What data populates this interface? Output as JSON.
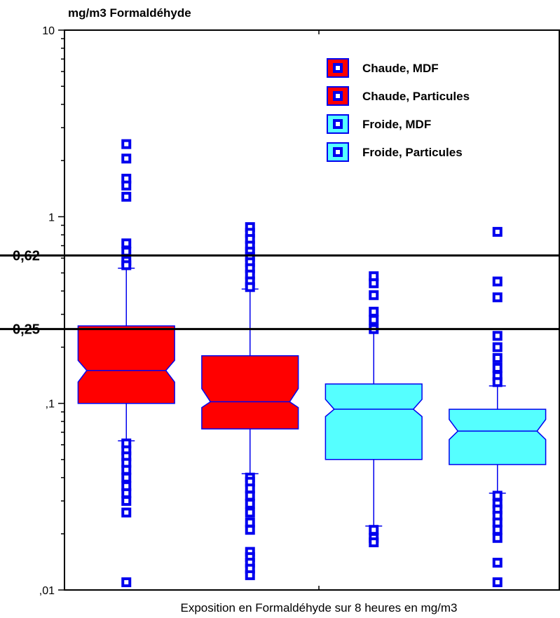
{
  "chart_data": {
    "type": "box",
    "title": "mg/m3 Formaldéhyde",
    "xlabel": "Exposition en Formaldéhyde sur 8 heures en mg/m3",
    "ylabel": "",
    "yscale": "log",
    "ylim": [
      0.01,
      10
    ],
    "yticks": [
      {
        "value": 10,
        "label": "10"
      },
      {
        "value": 1,
        "label": "1"
      },
      {
        "value": 0.1,
        "label": ",1"
      },
      {
        "value": 0.01,
        "label": ",01"
      }
    ],
    "reference_lines": [
      {
        "value": 0.62,
        "label": "0,62"
      },
      {
        "value": 0.25,
        "label": "0,25"
      }
    ],
    "legend_position": "top-right",
    "series": [
      {
        "name": "Chaude, MDF",
        "fill": "#ff0000",
        "q1": 0.1,
        "median": 0.15,
        "q3": 0.26,
        "notch_low": 0.13,
        "notch_high": 0.17,
        "whisker_low": 0.063,
        "whisker_high": 0.53,
        "outliers": [
          2.45,
          2.05,
          1.6,
          1.47,
          1.28,
          0.72,
          0.65,
          0.58,
          0.55,
          0.061,
          0.056,
          0.052,
          0.048,
          0.044,
          0.04,
          0.036,
          0.033,
          0.03,
          0.026,
          0.011
        ]
      },
      {
        "name": "Chaude, Particules",
        "fill": "#ff0000",
        "q1": 0.073,
        "median": 0.102,
        "q3": 0.18,
        "notch_low": 0.095,
        "notch_high": 0.12,
        "whisker_low": 0.042,
        "whisker_high": 0.41,
        "outliers": [
          0.88,
          0.82,
          0.76,
          0.7,
          0.65,
          0.61,
          0.57,
          0.53,
          0.49,
          0.45,
          0.42,
          0.04,
          0.038,
          0.035,
          0.032,
          0.029,
          0.026,
          0.023,
          0.021,
          0.016,
          0.015,
          0.014,
          0.013,
          0.012
        ]
      },
      {
        "name": "Froide, MDF",
        "fill": "#55ffff",
        "q1": 0.05,
        "median": 0.093,
        "q3": 0.127,
        "notch_low": 0.085,
        "notch_high": 0.105,
        "whisker_low": 0.022,
        "whisker_high": 0.25,
        "outliers": [
          0.48,
          0.44,
          0.38,
          0.31,
          0.28,
          0.25,
          0.021,
          0.019,
          0.018
        ]
      },
      {
        "name": "Froide, Particules",
        "fill": "#55ffff",
        "q1": 0.047,
        "median": 0.071,
        "q3": 0.093,
        "notch_low": 0.064,
        "notch_high": 0.082,
        "whisker_low": 0.033,
        "whisker_high": 0.124,
        "outliers": [
          0.83,
          0.45,
          0.37,
          0.23,
          0.2,
          0.175,
          0.155,
          0.14,
          0.13,
          0.032,
          0.029,
          0.027,
          0.025,
          0.023,
          0.021,
          0.019,
          0.014,
          0.011
        ]
      }
    ]
  }
}
